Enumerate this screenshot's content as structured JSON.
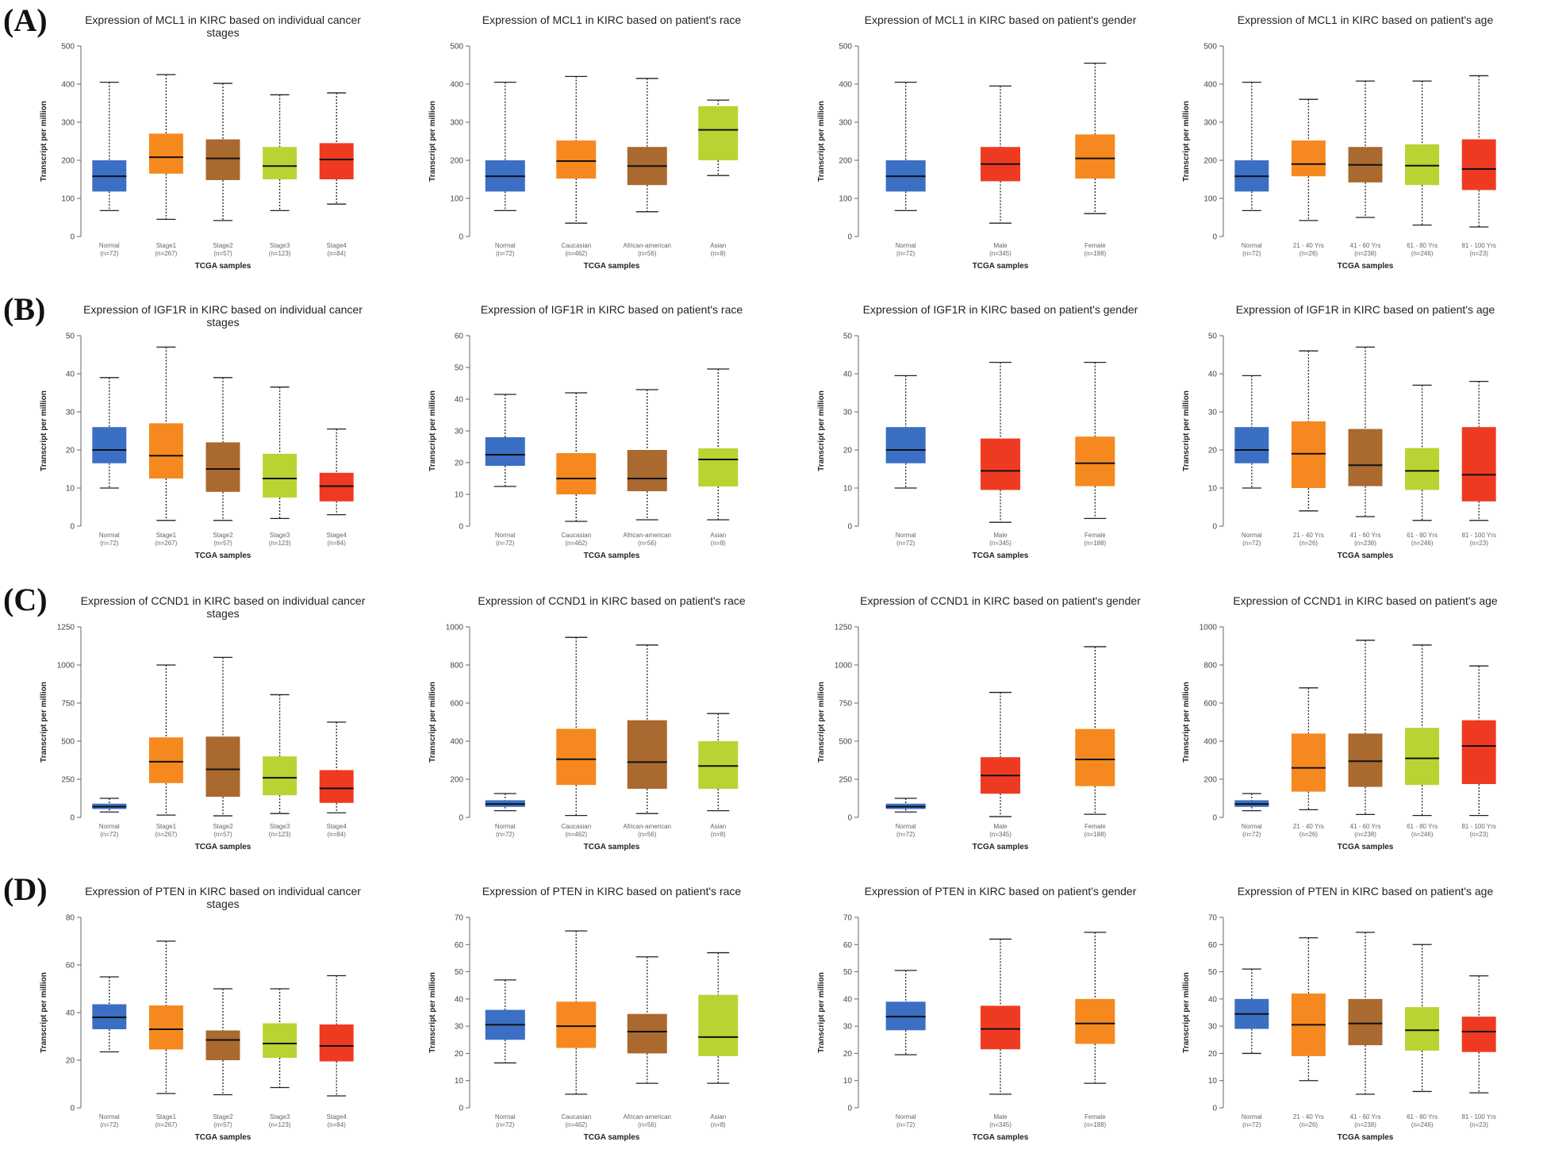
{
  "panels": [
    {
      "label": "(A)",
      "gene": "MCL1"
    },
    {
      "label": "(B)",
      "gene": "IGF1R"
    },
    {
      "label": "(C)",
      "gene": "CCND1"
    },
    {
      "label": "(D)",
      "gene": "PTEN"
    }
  ],
  "colors": {
    "normal": "#3a6fc4",
    "orange": "#f5891f",
    "brown": "#a9692f",
    "lime": "#b8d432",
    "red": "#ef3a22"
  },
  "chart_data": [
    {
      "type": "box",
      "title": [
        "Expression of MCL1 in KIRC based on individual cancer",
        "stages"
      ],
      "xlabel": "TCGA samples",
      "ylabel": "Transcript per million",
      "ylim": [
        0,
        500
      ],
      "yticks": [
        0,
        100,
        200,
        300,
        400,
        500
      ],
      "categories": [
        "Normal",
        "Stage1",
        "Stage2",
        "Stage3",
        "Stage4"
      ],
      "counts": [
        "(n=72)",
        "(n=267)",
        "(n=57)",
        "(n=123)",
        "(n=84)"
      ],
      "colors": [
        "#3a6fc4",
        "#f5891f",
        "#a9692f",
        "#b8d432",
        "#ef3a22"
      ],
      "whisker_low": [
        68,
        45,
        42,
        68,
        85
      ],
      "q1": [
        118,
        165,
        148,
        150,
        150
      ],
      "median": [
        158,
        208,
        205,
        185,
        202
      ],
      "q3": [
        200,
        270,
        255,
        235,
        245
      ],
      "whisker_high": [
        405,
        425,
        402,
        372,
        377
      ]
    },
    {
      "type": "box",
      "title": [
        "Expression of MCL1 in KIRC based on patient's race"
      ],
      "xlabel": "TCGA samples",
      "ylabel": "Transcript per million",
      "ylim": [
        0,
        500
      ],
      "yticks": [
        0,
        100,
        200,
        300,
        400,
        500
      ],
      "categories": [
        "Normal",
        "Caucasian",
        "African-american",
        "Asian"
      ],
      "counts": [
        "(n=72)",
        "(n=462)",
        "(n=56)",
        "(n=8)"
      ],
      "colors": [
        "#3a6fc4",
        "#f5891f",
        "#a9692f",
        "#b8d432"
      ],
      "whisker_low": [
        68,
        35,
        65,
        160
      ],
      "q1": [
        118,
        152,
        135,
        200
      ],
      "median": [
        158,
        198,
        185,
        280
      ],
      "q3": [
        200,
        252,
        235,
        342
      ],
      "whisker_high": [
        405,
        420,
        415,
        358
      ]
    },
    {
      "type": "box",
      "title": [
        "Expression of MCL1 in KIRC based on patient's gender"
      ],
      "xlabel": "TCGA samples",
      "ylabel": "Transcript per million",
      "ylim": [
        0,
        500
      ],
      "yticks": [
        0,
        100,
        200,
        300,
        400,
        500
      ],
      "categories": [
        "Normal",
        "Male",
        "Female"
      ],
      "counts": [
        "(n=72)",
        "(n=345)",
        "(n=188)"
      ],
      "colors": [
        "#3a6fc4",
        "#ef3a22",
        "#f5891f"
      ],
      "whisker_low": [
        68,
        35,
        60
      ],
      "q1": [
        118,
        145,
        152
      ],
      "median": [
        158,
        190,
        205
      ],
      "q3": [
        200,
        235,
        268
      ],
      "whisker_high": [
        405,
        395,
        455
      ]
    },
    {
      "type": "box",
      "title": [
        "Expression of MCL1 in KIRC based on patient's age"
      ],
      "xlabel": "TCGA samples",
      "ylabel": "Transcript per million",
      "ylim": [
        0,
        500
      ],
      "yticks": [
        0,
        100,
        200,
        300,
        400,
        500
      ],
      "categories": [
        "Normal",
        "21 - 40 Yrs",
        "41 - 60 Yrs",
        "61 - 80 Yrs",
        "81 - 100 Yrs"
      ],
      "counts": [
        "(n=72)",
        "(n=26)",
        "(n=238)",
        "(n=246)",
        "(n=23)"
      ],
      "colors": [
        "#3a6fc4",
        "#f5891f",
        "#a9692f",
        "#b8d432",
        "#ef3a22"
      ],
      "whisker_low": [
        68,
        42,
        50,
        30,
        25
      ],
      "q1": [
        118,
        158,
        142,
        135,
        122
      ],
      "median": [
        158,
        190,
        188,
        186,
        177
      ],
      "q3": [
        200,
        252,
        235,
        242,
        255
      ],
      "whisker_high": [
        405,
        360,
        408,
        408,
        422
      ]
    },
    {
      "type": "box",
      "title": [
        "Expression of IGF1R in KIRC based on individual cancer",
        "stages"
      ],
      "xlabel": "TCGA samples",
      "ylabel": "Transcript per million",
      "ylim": [
        0,
        50
      ],
      "yticks": [
        0,
        10,
        20,
        30,
        40,
        50
      ],
      "categories": [
        "Normal",
        "Stage1",
        "Stage2",
        "Stage3",
        "Stage4"
      ],
      "counts": [
        "(n=72)",
        "(n=267)",
        "(n=57)",
        "(n=123)",
        "(n=84)"
      ],
      "colors": [
        "#3a6fc4",
        "#f5891f",
        "#a9692f",
        "#b8d432",
        "#ef3a22"
      ],
      "whisker_low": [
        10,
        1.5,
        1.5,
        2,
        3
      ],
      "q1": [
        16.5,
        12.5,
        9,
        7.5,
        6.5
      ],
      "median": [
        20,
        18.5,
        15,
        12.5,
        10.5
      ],
      "q3": [
        26,
        27,
        22,
        19,
        14
      ],
      "whisker_high": [
        39,
        47,
        39,
        36.5,
        25.5
      ]
    },
    {
      "type": "box",
      "title": [
        "Expression of IGF1R in KIRC based on patient's race"
      ],
      "xlabel": "TCGA samples",
      "ylabel": "Transcript per million",
      "ylim": [
        0,
        60
      ],
      "yticks": [
        0,
        10,
        20,
        30,
        40,
        50,
        60
      ],
      "categories": [
        "Normal",
        "Caucasian",
        "African-american",
        "Asian"
      ],
      "counts": [
        "(n=72)",
        "(n=462)",
        "(n=56)",
        "(n=8)"
      ],
      "colors": [
        "#3a6fc4",
        "#f5891f",
        "#a9692f",
        "#b8d432"
      ],
      "whisker_low": [
        12.5,
        1.5,
        2,
        2
      ],
      "q1": [
        19,
        10,
        11,
        12.5
      ],
      "median": [
        22.5,
        15,
        15,
        21
      ],
      "q3": [
        28,
        23,
        24,
        24.5
      ],
      "whisker_high": [
        41.5,
        42,
        43,
        49.5
      ]
    },
    {
      "type": "box",
      "title": [
        "Expression of IGF1R in KIRC based on patient's gender"
      ],
      "xlabel": "TCGA samples",
      "ylabel": "Transcript per million",
      "ylim": [
        0,
        50
      ],
      "yticks": [
        0,
        10,
        20,
        30,
        40,
        50
      ],
      "categories": [
        "Normal",
        "Male",
        "Female"
      ],
      "counts": [
        "(n=72)",
        "(n=345)",
        "(n=188)"
      ],
      "colors": [
        "#3a6fc4",
        "#ef3a22",
        "#f5891f"
      ],
      "whisker_low": [
        10,
        1,
        2
      ],
      "q1": [
        16.5,
        9.5,
        10.5
      ],
      "median": [
        20,
        14.5,
        16.5
      ],
      "q3": [
        26,
        23,
        23.5
      ],
      "whisker_high": [
        39.5,
        43,
        43
      ]
    },
    {
      "type": "box",
      "title": [
        "Expression of IGF1R in KIRC based on patient's age"
      ],
      "xlabel": "TCGA samples",
      "ylabel": "Transcript per million",
      "ylim": [
        0,
        50
      ],
      "yticks": [
        0,
        10,
        20,
        30,
        40,
        50
      ],
      "categories": [
        "Normal",
        "21 - 40 Yrs",
        "41 - 60 Yrs",
        "61 - 80 Yrs",
        "81 - 100 Yrs"
      ],
      "counts": [
        "(n=72)",
        "(n=26)",
        "(n=238)",
        "(n=246)",
        "(n=23)"
      ],
      "colors": [
        "#3a6fc4",
        "#f5891f",
        "#a9692f",
        "#b8d432",
        "#ef3a22"
      ],
      "whisker_low": [
        10,
        4,
        2.5,
        1.5,
        1.5
      ],
      "q1": [
        16.5,
        10,
        10.5,
        9.5,
        6.5
      ],
      "median": [
        20,
        19,
        16,
        14.5,
        13.5
      ],
      "q3": [
        26,
        27.5,
        25.5,
        20.5,
        26
      ],
      "whisker_high": [
        39.5,
        46,
        47,
        37,
        38
      ]
    },
    {
      "type": "box",
      "title": [
        "Expression of CCND1 in KIRC based on individual cancer",
        "stages"
      ],
      "xlabel": "TCGA samples",
      "ylabel": "Transcript per million",
      "ylim": [
        0,
        1250
      ],
      "yticks": [
        0,
        250,
        500,
        750,
        1000,
        1250
      ],
      "categories": [
        "Normal",
        "Stage1",
        "Stage2",
        "Stage3",
        "Stage4"
      ],
      "counts": [
        "(n=72)",
        "(n=267)",
        "(n=57)",
        "(n=123)",
        "(n=84)"
      ],
      "colors": [
        "#3a6fc4",
        "#f5891f",
        "#a9692f",
        "#b8d432",
        "#ef3a22"
      ],
      "whisker_low": [
        35,
        15,
        10,
        25,
        30
      ],
      "q1": [
        55,
        225,
        135,
        145,
        95
      ],
      "median": [
        70,
        365,
        315,
        260,
        190
      ],
      "q3": [
        90,
        525,
        530,
        400,
        310
      ],
      "whisker_high": [
        125,
        1000,
        1050,
        805,
        625
      ]
    },
    {
      "type": "box",
      "title": [
        "Expression of CCND1 in KIRC based on patient's race"
      ],
      "xlabel": "TCGA samples",
      "ylabel": "Transcript per million",
      "ylim": [
        0,
        1000
      ],
      "yticks": [
        0,
        200,
        400,
        600,
        800,
        1000
      ],
      "categories": [
        "Normal",
        "Caucasian",
        "African-american",
        "Asian"
      ],
      "counts": [
        "(n=72)",
        "(n=462)",
        "(n=56)",
        "(n=8)"
      ],
      "colors": [
        "#3a6fc4",
        "#f5891f",
        "#a9692f",
        "#b8d432"
      ],
      "whisker_low": [
        35,
        10,
        20,
        35
      ],
      "q1": [
        55,
        170,
        150,
        150
      ],
      "median": [
        70,
        305,
        290,
        270
      ],
      "q3": [
        90,
        465,
        510,
        400
      ],
      "whisker_high": [
        125,
        945,
        905,
        545
      ]
    },
    {
      "type": "box",
      "title": [
        "Expression of CCND1 in KIRC based on patient's gender"
      ],
      "xlabel": "TCGA samples",
      "ylabel": "Transcript per million",
      "ylim": [
        0,
        1250
      ],
      "yticks": [
        0,
        250,
        500,
        750,
        1000,
        1250
      ],
      "categories": [
        "Normal",
        "Male",
        "Female"
      ],
      "counts": [
        "(n=72)",
        "(n=345)",
        "(n=188)"
      ],
      "colors": [
        "#3a6fc4",
        "#ef3a22",
        "#f5891f"
      ],
      "whisker_low": [
        35,
        5,
        20
      ],
      "q1": [
        55,
        155,
        205
      ],
      "median": [
        70,
        275,
        380
      ],
      "q3": [
        90,
        395,
        580
      ],
      "whisker_high": [
        125,
        820,
        1120
      ]
    },
    {
      "type": "box",
      "title": [
        "Expression of CCND1 in KIRC based on patient's age"
      ],
      "xlabel": "TCGA samples",
      "ylabel": "Transcript per million",
      "ylim": [
        0,
        1000
      ],
      "yticks": [
        0,
        200,
        400,
        600,
        800,
        1000
      ],
      "categories": [
        "Normal",
        "21 - 40 Yrs",
        "41 - 60 Yrs",
        "61 - 80 Yrs",
        "81 - 100 Yrs"
      ],
      "counts": [
        "(n=72)",
        "(n=26)",
        "(n=238)",
        "(n=246)",
        "(n=23)"
      ],
      "colors": [
        "#3a6fc4",
        "#f5891f",
        "#a9692f",
        "#b8d432",
        "#ef3a22"
      ],
      "whisker_low": [
        35,
        40,
        15,
        10,
        10
      ],
      "q1": [
        55,
        135,
        160,
        170,
        175
      ],
      "median": [
        70,
        260,
        295,
        310,
        375
      ],
      "q3": [
        90,
        440,
        440,
        470,
        510
      ],
      "whisker_high": [
        125,
        680,
        930,
        905,
        795
      ]
    },
    {
      "type": "box",
      "title": [
        "Expression of PTEN in KIRC based on individual cancer",
        "stages"
      ],
      "xlabel": "TCGA samples",
      "ylabel": "Transcript per million",
      "ylim": [
        0,
        80
      ],
      "yticks": [
        0,
        20,
        40,
        60,
        80
      ],
      "categories": [
        "Normal",
        "Stage1",
        "Stage2",
        "Stage3",
        "Stage4"
      ],
      "counts": [
        "(n=72)",
        "(n=267)",
        "(n=57)",
        "(n=123)",
        "(n=84)"
      ],
      "colors": [
        "#3a6fc4",
        "#f5891f",
        "#a9692f",
        "#b8d432",
        "#ef3a22"
      ],
      "whisker_low": [
        23.5,
        6,
        5.5,
        8.5,
        5
      ],
      "q1": [
        33,
        24.5,
        20,
        21,
        19.5
      ],
      "median": [
        38,
        33,
        28.5,
        27,
        26
      ],
      "q3": [
        43.5,
        43,
        32.5,
        35.5,
        35
      ],
      "whisker_high": [
        55,
        70,
        50,
        50,
        55.5
      ]
    },
    {
      "type": "box",
      "title": [
        "Expression of PTEN in KIRC based on patient's race"
      ],
      "xlabel": "TCGA samples",
      "ylabel": "Transcript per million",
      "ylim": [
        0,
        70
      ],
      "yticks": [
        0,
        10,
        20,
        30,
        40,
        50,
        60,
        70
      ],
      "categories": [
        "Normal",
        "Caucasian",
        "African-american",
        "Asian"
      ],
      "counts": [
        "(n=72)",
        "(n=462)",
        "(n=56)",
        "(n=8)"
      ],
      "colors": [
        "#3a6fc4",
        "#f5891f",
        "#a9692f",
        "#b8d432"
      ],
      "whisker_low": [
        16.5,
        5,
        9,
        9
      ],
      "q1": [
        25,
        22,
        20,
        19
      ],
      "median": [
        30.5,
        30,
        28,
        26
      ],
      "q3": [
        36,
        39,
        34.5,
        41.5
      ],
      "whisker_high": [
        47,
        65,
        55.5,
        57
      ]
    },
    {
      "type": "box",
      "title": [
        "Expression of PTEN in KIRC based on patient's gender"
      ],
      "xlabel": "TCGA samples",
      "ylabel": "Transcript per million",
      "ylim": [
        0,
        70
      ],
      "yticks": [
        0,
        10,
        20,
        30,
        40,
        50,
        60,
        70
      ],
      "categories": [
        "Normal",
        "Male",
        "Female"
      ],
      "counts": [
        "(n=72)",
        "(n=345)",
        "(n=188)"
      ],
      "colors": [
        "#3a6fc4",
        "#ef3a22",
        "#f5891f"
      ],
      "whisker_low": [
        19.5,
        5,
        9
      ],
      "q1": [
        28.5,
        21.5,
        23.5
      ],
      "median": [
        33.5,
        29,
        31
      ],
      "q3": [
        39,
        37.5,
        40
      ],
      "whisker_high": [
        50.5,
        62,
        64.5
      ]
    },
    {
      "type": "box",
      "title": [
        "Expression of PTEN in KIRC based on patient's age"
      ],
      "xlabel": "TCGA samples",
      "ylabel": "Transcript per million",
      "ylim": [
        0,
        70
      ],
      "yticks": [
        0,
        10,
        20,
        30,
        40,
        50,
        60,
        70
      ],
      "categories": [
        "Normal",
        "21 - 40 Yrs",
        "41 - 60 Yrs",
        "61 - 80 Yrs",
        "81 - 100 Yrs"
      ],
      "counts": [
        "(n=72)",
        "(n=26)",
        "(n=238)",
        "(n=246)",
        "(n=23)"
      ],
      "colors": [
        "#3a6fc4",
        "#f5891f",
        "#a9692f",
        "#b8d432",
        "#ef3a22"
      ],
      "whisker_low": [
        20,
        10,
        5,
        6,
        5.5
      ],
      "q1": [
        29,
        19,
        23,
        21,
        20.5
      ],
      "median": [
        34.5,
        30.5,
        31,
        28.5,
        28
      ],
      "q3": [
        40,
        42,
        40,
        37,
        33.5
      ],
      "whisker_high": [
        51,
        62.5,
        64.5,
        60,
        48.5
      ]
    }
  ]
}
